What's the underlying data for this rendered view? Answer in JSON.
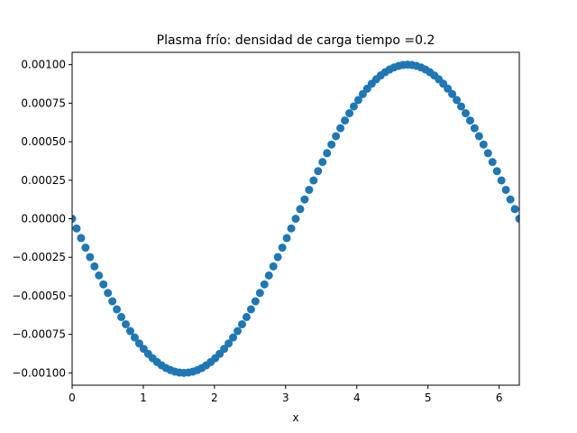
{
  "chart_data": {
    "type": "scatter",
    "title": "Plasma frío: densidad de carga  tiempo =0.2",
    "xlabel": "x",
    "ylabel": "",
    "xlim": [
      0,
      6.2832
    ],
    "ylim": [
      -0.00108,
      0.00108
    ],
    "xticks": [
      0,
      1,
      2,
      3,
      4,
      5,
      6
    ],
    "xtick_labels": [
      "0",
      "1",
      "2",
      "3",
      "4",
      "5",
      "6"
    ],
    "yticks": [
      -0.001,
      -0.00075,
      -0.0005,
      -0.00025,
      0,
      0.00025,
      0.0005,
      0.00075,
      0.001
    ],
    "ytick_labels": [
      "−0.00100",
      "−0.00075",
      "−0.00050",
      "−0.00025",
      "0.00000",
      "0.00025",
      "0.00050",
      "0.00075",
      "0.00100"
    ],
    "grid": false,
    "marker_color": "#1f77b4",
    "series": [
      {
        "name": "",
        "x": [
          0,
          0.0628,
          0.1257,
          0.1885,
          0.2513,
          0.3142,
          0.377,
          0.4398,
          0.5027,
          0.5655,
          0.6283,
          0.6912,
          0.754,
          0.8168,
          0.8796,
          0.9425,
          1.0053,
          1.0681,
          1.131,
          1.1938,
          1.2566,
          1.3195,
          1.3823,
          1.4451,
          1.508,
          1.5708,
          1.6336,
          1.6965,
          1.7593,
          1.8221,
          1.885,
          1.9478,
          2.0106,
          2.0735,
          2.1363,
          2.1991,
          2.2619,
          2.3248,
          2.3876,
          2.4504,
          2.5133,
          2.5761,
          2.6389,
          2.7018,
          2.7646,
          2.8274,
          2.8903,
          2.9531,
          3.0159,
          3.0788,
          3.1416,
          3.2044,
          3.2673,
          3.3301,
          3.3929,
          3.4558,
          3.5186,
          3.5814,
          3.6442,
          3.7071,
          3.7699,
          3.8327,
          3.8956,
          3.9584,
          4.0212,
          4.0841,
          4.1469,
          4.2097,
          4.2726,
          4.3354,
          4.3982,
          4.4611,
          4.5239,
          4.5867,
          4.6496,
          4.7124,
          4.7752,
          4.8381,
          4.9009,
          4.9637,
          5.0265,
          5.0894,
          5.1522,
          5.215,
          5.2779,
          5.3407,
          5.4035,
          5.4664,
          5.5292,
          5.592,
          5.6549,
          5.7177,
          5.7805,
          5.8434,
          5.9062,
          5.969,
          6.0319,
          6.0947,
          6.1575,
          6.2204,
          6.2832
        ],
        "y": [
          0,
          -6.28e-05,
          -0.0001253,
          -0.0001874,
          -0.0002487,
          -0.000309,
          -0.0003681,
          -0.0004258,
          -0.0004818,
          -0.0005358,
          -0.0005878,
          -0.0006374,
          -0.0006845,
          -0.000729,
          -0.0007705,
          -0.000809,
          -0.0008443,
          -0.0008763,
          -0.0009048,
          -0.0009298,
          -0.0009511,
          -0.0009686,
          -0.0009823,
          -0.0009921,
          -0.000998,
          -0.001,
          -0.000998,
          -0.0009921,
          -0.0009823,
          -0.0009686,
          -0.0009511,
          -0.0009298,
          -0.0009048,
          -0.0008763,
          -0.0008443,
          -0.000809,
          -0.0007705,
          -0.000729,
          -0.0006845,
          -0.0006374,
          -0.0005878,
          -0.0005358,
          -0.0004818,
          -0.0004258,
          -0.0003681,
          -0.000309,
          -0.0002487,
          -0.0001874,
          -0.0001253,
          -6.28e-05,
          0,
          6.28e-05,
          0.0001253,
          0.0001874,
          0.0002487,
          0.000309,
          0.0003681,
          0.0004258,
          0.0004818,
          0.0005358,
          0.0005878,
          0.0006374,
          0.0006845,
          0.000729,
          0.0007705,
          0.000809,
          0.0008443,
          0.0008763,
          0.0009048,
          0.0009298,
          0.0009511,
          0.0009686,
          0.0009823,
          0.0009921,
          0.000998,
          0.001,
          0.000998,
          0.0009921,
          0.0009823,
          0.0009686,
          0.0009511,
          0.0009298,
          0.0009048,
          0.0008763,
          0.0008443,
          0.000809,
          0.0007705,
          0.000729,
          0.0006845,
          0.0006374,
          0.0005878,
          0.0005358,
          0.0004818,
          0.0004258,
          0.0003681,
          0.000309,
          0.0002487,
          0.0001874,
          0.0001253,
          6.28e-05,
          0
        ]
      }
    ]
  }
}
